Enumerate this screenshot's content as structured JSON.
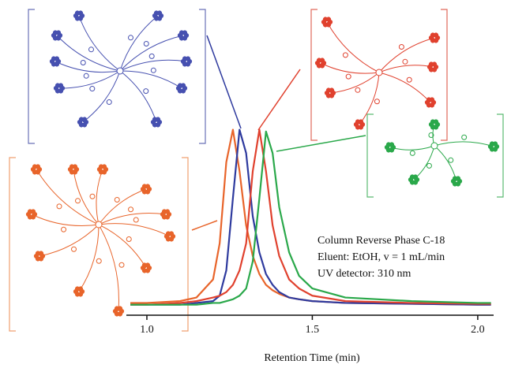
{
  "chart_data": {
    "type": "line",
    "x_label": "Retention Time (min)",
    "annotations": [
      "Column Reverse Phase C-18",
      "Eluent: EtOH, v = 1 mL/min",
      "UV detector: 310 nm"
    ],
    "x": [
      0.95,
      1.0,
      1.1,
      1.15,
      1.2,
      1.22,
      1.24,
      1.26,
      1.28,
      1.3,
      1.32,
      1.34,
      1.36,
      1.38,
      1.4,
      1.43,
      1.46,
      1.5,
      1.6,
      1.8,
      2.0,
      2.04
    ],
    "series": [
      {
        "color": "#e8642a",
        "values": [
          0.02,
          0.02,
          0.03,
          0.05,
          0.15,
          0.35,
          0.8,
          0.98,
          0.75,
          0.45,
          0.28,
          0.18,
          0.12,
          0.09,
          0.07,
          0.05,
          0.04,
          0.03,
          0.02,
          0.015,
          0.01,
          0.01
        ]
      },
      {
        "color": "#2e3a9e",
        "values": [
          0.01,
          0.01,
          0.01,
          0.02,
          0.03,
          0.06,
          0.2,
          0.6,
          0.98,
          0.85,
          0.5,
          0.3,
          0.18,
          0.12,
          0.08,
          0.05,
          0.04,
          0.03,
          0.02,
          0.015,
          0.01,
          0.01
        ]
      },
      {
        "color": "#e0412e",
        "values": [
          0.01,
          0.01,
          0.02,
          0.03,
          0.05,
          0.06,
          0.08,
          0.12,
          0.2,
          0.35,
          0.75,
          0.98,
          0.75,
          0.45,
          0.28,
          0.15,
          0.1,
          0.06,
          0.03,
          0.02,
          0.015,
          0.015
        ]
      },
      {
        "color": "#2aa84a",
        "values": [
          0.01,
          0.01,
          0.01,
          0.01,
          0.02,
          0.02,
          0.03,
          0.04,
          0.06,
          0.1,
          0.25,
          0.6,
          0.97,
          0.85,
          0.55,
          0.3,
          0.17,
          0.1,
          0.05,
          0.03,
          0.02,
          0.02
        ]
      }
    ],
    "xlim": [
      0.938,
      2.048
    ],
    "xticks": [
      {
        "value": 1,
        "label": "1.0"
      },
      {
        "value": 1.5,
        "label": "1.5"
      },
      {
        "value": 2,
        "label": "2.0"
      }
    ],
    "ylim": [
      0,
      1
    ]
  }
}
